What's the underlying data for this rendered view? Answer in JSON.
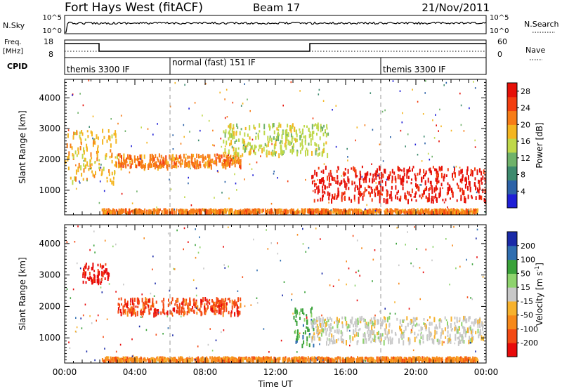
{
  "header": {
    "radar": "Fort Hays West (fitACF)",
    "beam": "Beam 17",
    "date": "21/Nov/2011"
  },
  "status_panels": {
    "nsky": {
      "label": "N.Sky",
      "ticks": [
        "10^5",
        "10^0"
      ]
    },
    "nsearch": {
      "label": "N.Search",
      "ticks": [
        "10^5",
        "10^0"
      ]
    },
    "freq": {
      "label_line1": "Freq.",
      "label_line2": "[MHz]",
      "ticks": [
        "18",
        "8"
      ]
    },
    "nave": {
      "label": "Nave",
      "ticks": [
        "60",
        "0"
      ]
    },
    "cpid": {
      "label": "CPID",
      "segments": [
        {
          "name": "themis 3300 IF",
          "start_hr": 0.0,
          "end_hr": 6.0
        },
        {
          "name": "normal (fast) 151 IF",
          "start_hr": 6.0,
          "end_hr": 18.0
        },
        {
          "name": "themis 3300 IF",
          "start_hr": 18.0,
          "end_hr": 24.0
        }
      ]
    }
  },
  "chart_data": [
    {
      "type": "heatmap",
      "title": "",
      "xlabel": "Time UT",
      "ylabel": "Slant Range [km]",
      "xlim_hr": [
        0,
        24
      ],
      "ylim": [
        200,
        4600
      ],
      "xticks": [
        "00:00",
        "04:00",
        "08:00",
        "12:00",
        "16:00",
        "20:00",
        "00:00"
      ],
      "yticks": [
        1000,
        2000,
        3000,
        4000
      ],
      "colorbar": {
        "label": "Power [dB]",
        "ticks": [
          4,
          8,
          12,
          16,
          20,
          24,
          28
        ],
        "range": [
          0,
          30
        ],
        "colors": [
          "#1f1fd6",
          "#2c62a8",
          "#3d8a6e",
          "#6fb26a",
          "#bfd84a",
          "#f4b520",
          "#f77c17",
          "#f33e10",
          "#e61008"
        ]
      },
      "features": [
        {
          "name": "E-region band",
          "time_hr": [
            2.1,
            23.5
          ],
          "range_km": [
            300,
            420
          ],
          "value_db": 20
        },
        {
          "name": "early F echoes",
          "time_hr": [
            0.0,
            3.0
          ],
          "range_km": [
            1300,
            3000
          ],
          "value_db": 18
        },
        {
          "name": "arc echo",
          "time_hr": [
            3.0,
            10.0
          ],
          "range_km": [
            1800,
            2200
          ],
          "value_db": 22
        },
        {
          "name": "far range F echoes",
          "time_hr": [
            9.0,
            15.0
          ],
          "range_km": [
            2200,
            3200
          ],
          "value_db": 14
        },
        {
          "name": "evening dense echoes",
          "time_hr": [
            14.0,
            24.0
          ],
          "range_km": [
            700,
            1800
          ],
          "value_db": 28
        }
      ]
    },
    {
      "type": "heatmap",
      "title": "",
      "xlabel": "Time UT",
      "ylabel": "Slant Range [km]",
      "xlim_hr": [
        0,
        24
      ],
      "ylim": [
        200,
        4600
      ],
      "xticks": [
        "00:00",
        "04:00",
        "08:00",
        "12:00",
        "16:00",
        "20:00",
        "00:00"
      ],
      "yticks": [
        1000,
        2000,
        3000,
        4000
      ],
      "colorbar": {
        "label": "Velocity [m s^-1]",
        "ticks": [
          200,
          100,
          50,
          15,
          -15,
          -50,
          -100,
          -200
        ],
        "colors": [
          "#1a2aa8",
          "#2f6eb0",
          "#3aa23a",
          "#8ed36d",
          "#c8c8c8",
          "#f7b22d",
          "#f7891a",
          "#f44a14",
          "#e80a0a"
        ],
        "ground_scatter_color": "#c8c8c8"
      },
      "features": [
        {
          "name": "E-region band",
          "time_hr": [
            2.1,
            23.5
          ],
          "range_km": [
            300,
            420
          ],
          "velocity": -50
        },
        {
          "name": "early red patch",
          "time_hr": [
            1.0,
            2.5
          ],
          "range_km": [
            2800,
            3400
          ],
          "velocity": -200
        },
        {
          "name": "orange arc",
          "time_hr": [
            3.0,
            10.0
          ],
          "range_km": [
            1800,
            2300
          ],
          "velocity": -100
        },
        {
          "name": "green spike",
          "time_hr": [
            13.0,
            14.2
          ],
          "range_km": [
            800,
            2000
          ],
          "velocity": 50
        },
        {
          "name": "ground scatter",
          "time_hr": [
            14.0,
            24.0
          ],
          "range_km": [
            900,
            1700
          ],
          "velocity": 0
        }
      ]
    }
  ]
}
